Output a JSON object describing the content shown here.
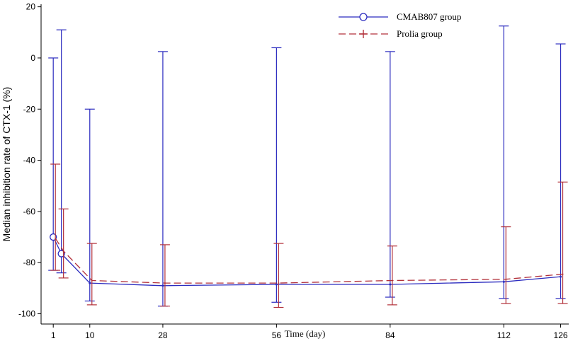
{
  "chart_data": {
    "type": "line",
    "xlabel": "Time (day)",
    "ylabel": "Median inhibition rate of CTX-1 (%)",
    "xlim": [
      -2,
      128
    ],
    "ylim": [
      -104,
      21
    ],
    "x_ticks": [
      1,
      10,
      28,
      56,
      84,
      112,
      126
    ],
    "y_ticks": [
      20,
      0,
      -20,
      -40,
      -60,
      -80,
      -100
    ],
    "grid": false,
    "legend_position": "top-right",
    "series": [
      {
        "name": "CMAB807 group",
        "color": "#2b2bbf",
        "marker": "circle",
        "line_style": "solid",
        "x": [
          1,
          3,
          10,
          28,
          56,
          84,
          112,
          126
        ],
        "y": [
          -70,
          -76.5,
          -88,
          -89,
          -88.5,
          -88.5,
          -87.5,
          -85.5
        ],
        "err_low": [
          -83,
          -84,
          -95,
          -97,
          -95.5,
          -93.5,
          -94,
          -94
        ],
        "err_high": [
          0,
          11,
          -20,
          2.5,
          4,
          2.5,
          12.5,
          5.5
        ]
      },
      {
        "name": "Prolia group",
        "color": "#b2303a",
        "marker": "plus",
        "line_style": "dashed",
        "x": [
          1,
          3,
          10,
          28,
          56,
          84,
          112,
          126
        ],
        "y": [
          -70.5,
          -75.5,
          -87,
          -88,
          -88,
          -87,
          -86.5,
          -84.5
        ],
        "err_low": [
          -83,
          -86,
          -96.5,
          -97,
          -97.5,
          -96.5,
          -96,
          -96
        ],
        "err_high": [
          -41.5,
          -59,
          -72.5,
          -73,
          -72.5,
          -73.5,
          -66,
          -48.5
        ]
      }
    ]
  }
}
